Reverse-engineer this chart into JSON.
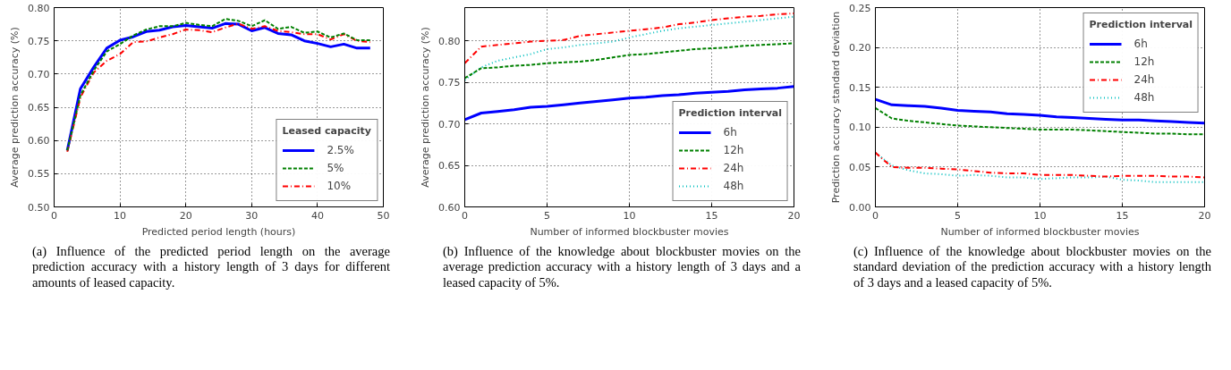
{
  "chart_data": [
    {
      "type": "line",
      "xlabel": "Predicted period length (hours)",
      "ylabel": "Average prediction accuracy (%)",
      "legend_title": "Leased capacity",
      "legend": "bottom right",
      "grid": true,
      "x": [
        2,
        4,
        6,
        8,
        10,
        12,
        14,
        16,
        18,
        20,
        22,
        24,
        26,
        28,
        30,
        32,
        34,
        36,
        38,
        40,
        42,
        44,
        46,
        48
      ],
      "xlim": [
        0,
        50
      ],
      "xticks": [
        0,
        10,
        20,
        30,
        40,
        50
      ],
      "ylim": [
        0.5,
        0.8
      ],
      "yticks": [
        {
          "value": 0.5,
          "label": "0.50"
        },
        {
          "value": 0.55,
          "label": "0.55"
        },
        {
          "value": 0.6,
          "label": "0.60"
        },
        {
          "value": 0.65,
          "label": "0.65"
        },
        {
          "value": 0.7,
          "label": "0.70"
        },
        {
          "value": 0.75,
          "label": "0.75"
        },
        {
          "value": 0.8,
          "label": "0.80"
        }
      ],
      "series": [
        {
          "name": "2.5%",
          "color": "#0000ff",
          "line_style": "solid",
          "values": [
            0.585,
            0.678,
            0.71,
            0.739,
            0.751,
            0.756,
            0.764,
            0.766,
            0.771,
            0.773,
            0.771,
            0.769,
            0.776,
            0.775,
            0.765,
            0.77,
            0.761,
            0.759,
            0.75,
            0.746,
            0.741,
            0.745,
            0.739,
            0.739
          ]
        },
        {
          "name": "5%",
          "color": "#008000",
          "line_style": "dashed",
          "values": [
            0.585,
            0.668,
            0.705,
            0.734,
            0.745,
            0.758,
            0.767,
            0.772,
            0.772,
            0.777,
            0.774,
            0.772,
            0.783,
            0.78,
            0.772,
            0.781,
            0.768,
            0.771,
            0.762,
            0.764,
            0.755,
            0.761,
            0.751,
            0.751
          ]
        },
        {
          "name": "10%",
          "color": "#ff0000",
          "line_style": "dashdot",
          "values": [
            0.583,
            0.665,
            0.702,
            0.72,
            0.73,
            0.748,
            0.749,
            0.755,
            0.76,
            0.767,
            0.766,
            0.763,
            0.77,
            0.776,
            0.768,
            0.772,
            0.765,
            0.763,
            0.76,
            0.76,
            0.752,
            0.76,
            0.75,
            0.748
          ]
        }
      ],
      "annotations": [
        "(a) Influence of the predicted period length on the average prediction accuracy with a history length of 3 days for different amounts of leased capacity."
      ]
    },
    {
      "type": "line",
      "xlabel": "Number of informed blockbuster movies",
      "ylabel": "Average prediction accuracy (%)",
      "legend_title": "Prediction interval",
      "legend": "bottom right",
      "grid": true,
      "x": [
        0,
        1,
        2,
        3,
        4,
        5,
        6,
        7,
        8,
        9,
        10,
        11,
        12,
        13,
        14,
        15,
        16,
        17,
        18,
        19,
        20
      ],
      "xlim": [
        0,
        20
      ],
      "xticks": [
        0,
        5,
        10,
        15,
        20
      ],
      "ylim": [
        0.6,
        0.84
      ],
      "yticks": [
        {
          "value": 0.6,
          "label": "0.60"
        },
        {
          "value": 0.65,
          "label": "0.65"
        },
        {
          "value": 0.7,
          "label": "0.70"
        },
        {
          "value": 0.75,
          "label": "0.75"
        },
        {
          "value": 0.8,
          "label": "0.80"
        }
      ],
      "series": [
        {
          "name": "6h",
          "color": "#0000ff",
          "line_style": "solid",
          "values": [
            0.705,
            0.713,
            0.715,
            0.717,
            0.72,
            0.721,
            0.723,
            0.725,
            0.727,
            0.729,
            0.731,
            0.732,
            0.734,
            0.735,
            0.737,
            0.738,
            0.739,
            0.741,
            0.742,
            0.743,
            0.745
          ]
        },
        {
          "name": "12h",
          "color": "#008000",
          "line_style": "dashed",
          "values": [
            0.755,
            0.767,
            0.768,
            0.77,
            0.771,
            0.773,
            0.774,
            0.775,
            0.777,
            0.78,
            0.783,
            0.784,
            0.786,
            0.788,
            0.79,
            0.791,
            0.792,
            0.794,
            0.795,
            0.796,
            0.797
          ]
        },
        {
          "name": "24h",
          "color": "#ff0000",
          "line_style": "dashdot",
          "values": [
            0.773,
            0.793,
            0.795,
            0.797,
            0.799,
            0.8,
            0.801,
            0.806,
            0.808,
            0.81,
            0.812,
            0.814,
            0.816,
            0.82,
            0.822,
            0.825,
            0.827,
            0.829,
            0.83,
            0.832,
            0.833
          ]
        },
        {
          "name": "48h",
          "color": "#00bfbf",
          "line_style": "dotted",
          "values": [
            0.753,
            0.768,
            0.776,
            0.78,
            0.784,
            0.79,
            0.792,
            0.795,
            0.797,
            0.799,
            0.804,
            0.808,
            0.812,
            0.815,
            0.817,
            0.819,
            0.821,
            0.823,
            0.825,
            0.827,
            0.829
          ]
        }
      ],
      "annotations": [
        "(b) Influence of the knowledge about blockbuster movies on the average prediction accuracy with a history length of 3 days and a leased capacity of 5%."
      ]
    },
    {
      "type": "line",
      "xlabel": "Number of informed blockbuster movies",
      "ylabel": "Prediction accuracy standard deviation",
      "legend_title": "Prediction interval",
      "legend": "top right",
      "grid": true,
      "x": [
        0,
        1,
        2,
        3,
        4,
        5,
        6,
        7,
        8,
        9,
        10,
        11,
        12,
        13,
        14,
        15,
        16,
        17,
        18,
        19,
        20
      ],
      "xlim": [
        0,
        20
      ],
      "xticks": [
        0,
        5,
        10,
        15,
        20
      ],
      "ylim": [
        0,
        0.25
      ],
      "yticks": [
        {
          "value": 0,
          "label": "0.00"
        },
        {
          "value": 0.05,
          "label": "0.05"
        },
        {
          "value": 0.1,
          "label": "0.10"
        },
        {
          "value": 0.15,
          "label": "0.15"
        },
        {
          "value": 0.2,
          "label": "0.20"
        },
        {
          "value": 0.25,
          "label": "0.25"
        }
      ],
      "series": [
        {
          "name": "6h",
          "color": "#0000ff",
          "line_style": "solid",
          "values": [
            0.135,
            0.128,
            0.127,
            0.126,
            0.124,
            0.121,
            0.12,
            0.119,
            0.117,
            0.116,
            0.115,
            0.113,
            0.112,
            0.111,
            0.11,
            0.109,
            0.109,
            0.108,
            0.107,
            0.106,
            0.105
          ]
        },
        {
          "name": "12h",
          "color": "#008000",
          "line_style": "dashed",
          "values": [
            0.124,
            0.111,
            0.108,
            0.106,
            0.104,
            0.102,
            0.101,
            0.1,
            0.099,
            0.098,
            0.097,
            0.097,
            0.097,
            0.096,
            0.095,
            0.094,
            0.093,
            0.092,
            0.092,
            0.091,
            0.091
          ]
        },
        {
          "name": "24h",
          "color": "#ff0000",
          "line_style": "dashdot",
          "values": [
            0.068,
            0.05,
            0.049,
            0.049,
            0.048,
            0.047,
            0.045,
            0.043,
            0.042,
            0.042,
            0.04,
            0.04,
            0.04,
            0.039,
            0.038,
            0.039,
            0.039,
            0.039,
            0.038,
            0.038,
            0.037
          ]
        },
        {
          "name": "48h",
          "color": "#00bfbf",
          "line_style": "dotted",
          "values": [
            0.068,
            0.052,
            0.046,
            0.042,
            0.041,
            0.039,
            0.04,
            0.039,
            0.037,
            0.037,
            0.035,
            0.036,
            0.037,
            0.037,
            0.038,
            0.034,
            0.033,
            0.031,
            0.031,
            0.031,
            0.031
          ]
        }
      ],
      "annotations": [
        "(c) Influence of the knowledge about blockbuster movies on the standard deviation of the prediction accuracy with a history length of 3 days and a leased capacity of 5%."
      ]
    }
  ]
}
